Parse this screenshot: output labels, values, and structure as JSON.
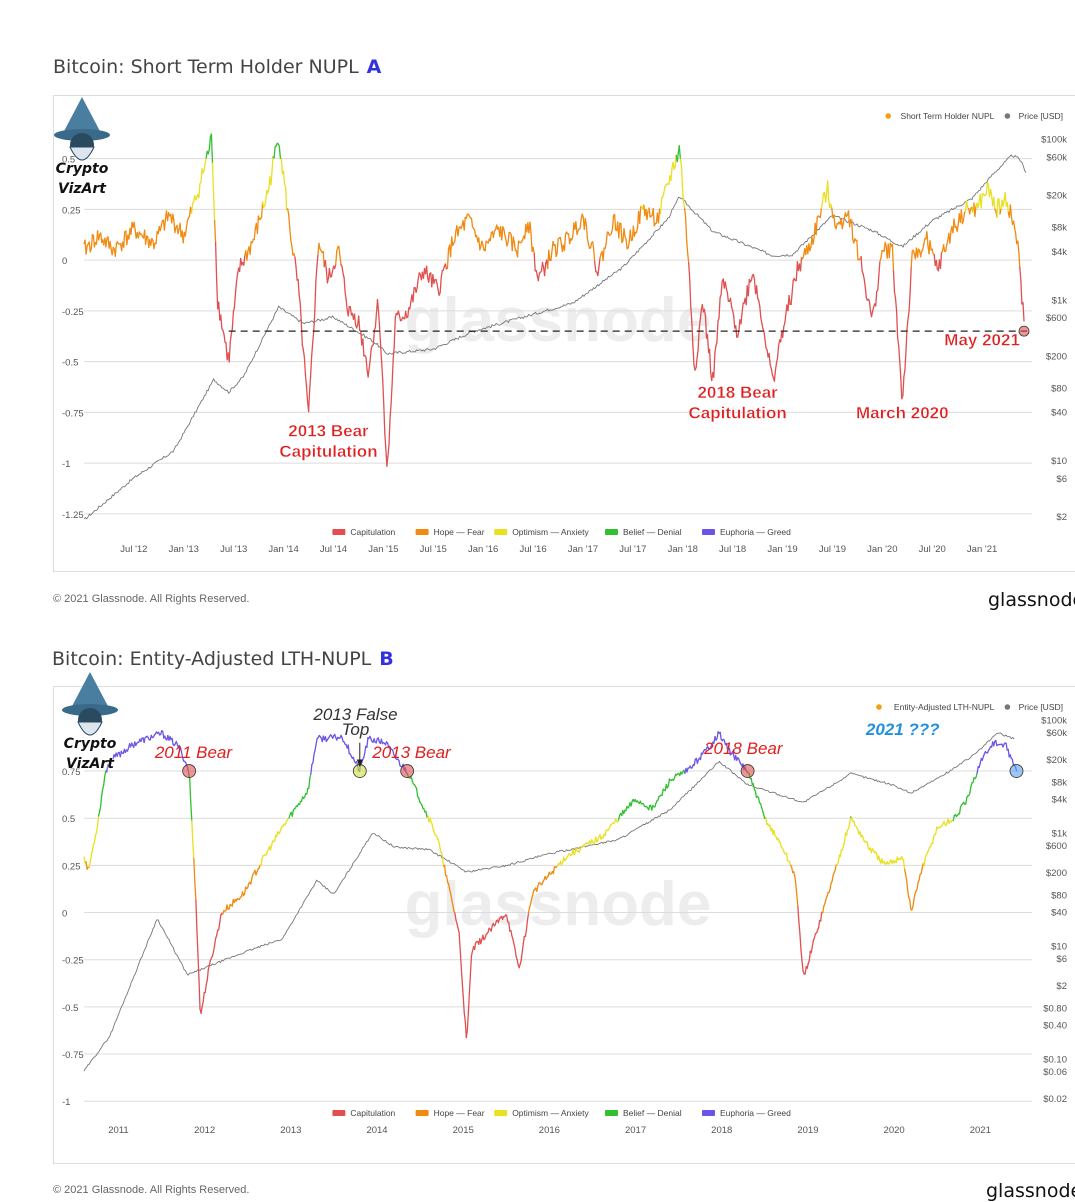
{
  "chart_data": [
    {
      "type": "line",
      "title": "Bitcoin: Short Term Holder NUPL",
      "panel_tag": "A",
      "legend_top": [
        {
          "name": "Short Term Holder NUPL",
          "color": "#f0a010"
        },
        {
          "name": "Price [USD]",
          "color": "#777777"
        }
      ],
      "legend_bottom": [
        {
          "name": "Capitulation",
          "color": "#e05050"
        },
        {
          "name": "Hope — Fear",
          "color": "#f08a10"
        },
        {
          "name": "Optimism — Anxiety",
          "color": "#e8e020"
        },
        {
          "name": "Belief — Denial",
          "color": "#30c030"
        },
        {
          "name": "Euphoria — Greed",
          "color": "#6a55e8"
        }
      ],
      "x_ticks": [
        "Jul '12",
        "Jan '13",
        "Jul '13",
        "Jan '14",
        "Jul '14",
        "Jan '15",
        "Jul '15",
        "Jan '16",
        "Jul '16",
        "Jan '17",
        "Jul '17",
        "Jan '18",
        "Jul '18",
        "Jan '19",
        "Jul '19",
        "Jan '20",
        "Jul '20",
        "Jan '21"
      ],
      "x_range": [
        2012.0,
        2021.5
      ],
      "y_left_ticks": [
        "0.5",
        "0.25",
        "0",
        "-0.25",
        "-0.5",
        "-0.75",
        "-1",
        "-1.25"
      ],
      "y_left_values": [
        0.5,
        0.25,
        0,
        -0.25,
        -0.5,
        -0.75,
        -1,
        -1.25
      ],
      "ylim": [
        -1.3,
        0.7
      ],
      "y_right_ticks": [
        "$100k",
        "$60k",
        "$20k",
        "$8k",
        "$4k",
        "$1k",
        "$600",
        "$200",
        "$80",
        "$40",
        "$10",
        "$6",
        "$2"
      ],
      "y_right_values": [
        100000,
        60000,
        20000,
        8000,
        4000,
        1000,
        600,
        200,
        80,
        40,
        10,
        6,
        2
      ],
      "y_right_range": [
        1.6,
        180000
      ],
      "stroke_keyframes": [
        [
          2012.0,
          0.05
        ],
        [
          2012.15,
          0.12
        ],
        [
          2012.3,
          0.05
        ],
        [
          2012.5,
          0.15
        ],
        [
          2012.7,
          0.08
        ],
        [
          2012.85,
          0.22
        ],
        [
          2013.0,
          0.12
        ],
        [
          2013.15,
          0.35
        ],
        [
          2013.28,
          0.6
        ],
        [
          2013.34,
          -0.2
        ],
        [
          2013.45,
          -0.5
        ],
        [
          2013.55,
          -0.05
        ],
        [
          2013.7,
          0.1
        ],
        [
          2013.85,
          0.35
        ],
        [
          2013.95,
          0.62
        ],
        [
          2014.05,
          0.2
        ],
        [
          2014.15,
          -0.15
        ],
        [
          2014.25,
          -0.78
        ],
        [
          2014.35,
          0.1
        ],
        [
          2014.45,
          -0.1
        ],
        [
          2014.55,
          0.05
        ],
        [
          2014.65,
          -0.25
        ],
        [
          2014.75,
          -0.3
        ],
        [
          2014.85,
          -0.55
        ],
        [
          2014.95,
          -0.2
        ],
        [
          2015.04,
          -1.05
        ],
        [
          2015.12,
          -0.3
        ],
        [
          2015.25,
          -0.25
        ],
        [
          2015.4,
          -0.05
        ],
        [
          2015.55,
          -0.15
        ],
        [
          2015.7,
          0.1
        ],
        [
          2015.85,
          0.2
        ],
        [
          2016.0,
          0.05
        ],
        [
          2016.15,
          0.15
        ],
        [
          2016.35,
          0.05
        ],
        [
          2016.45,
          0.2
        ],
        [
          2016.55,
          -0.1
        ],
        [
          2016.7,
          0.05
        ],
        [
          2016.85,
          0.1
        ],
        [
          2017.0,
          0.22
        ],
        [
          2017.15,
          -0.05
        ],
        [
          2017.3,
          0.2
        ],
        [
          2017.45,
          0.08
        ],
        [
          2017.6,
          0.25
        ],
        [
          2017.75,
          0.2
        ],
        [
          2017.9,
          0.45
        ],
        [
          2017.97,
          0.55
        ],
        [
          2018.05,
          0.05
        ],
        [
          2018.12,
          -0.55
        ],
        [
          2018.2,
          -0.2
        ],
        [
          2018.3,
          -0.6
        ],
        [
          2018.4,
          -0.1
        ],
        [
          2018.55,
          -0.35
        ],
        [
          2018.7,
          -0.05
        ],
        [
          2018.8,
          -0.3
        ],
        [
          2018.9,
          -0.6
        ],
        [
          2019.0,
          -0.35
        ],
        [
          2019.15,
          -0.05
        ],
        [
          2019.3,
          0.1
        ],
        [
          2019.45,
          0.35
        ],
        [
          2019.55,
          0.15
        ],
        [
          2019.65,
          0.25
        ],
        [
          2019.8,
          -0.05
        ],
        [
          2019.9,
          -0.3
        ],
        [
          2020.0,
          0.05
        ],
        [
          2020.1,
          0.05
        ],
        [
          2020.2,
          -0.7
        ],
        [
          2020.3,
          0.0
        ],
        [
          2020.45,
          0.1
        ],
        [
          2020.55,
          -0.05
        ],
        [
          2020.7,
          0.15
        ],
        [
          2020.85,
          0.25
        ],
        [
          2020.95,
          0.25
        ],
        [
          2021.05,
          0.35
        ],
        [
          2021.15,
          0.25
        ],
        [
          2021.25,
          0.3
        ],
        [
          2021.35,
          0.1
        ],
        [
          2021.42,
          -0.3
        ]
      ],
      "price_keyframes": [
        [
          2012.0,
          1.8
        ],
        [
          2012.5,
          6
        ],
        [
          2012.9,
          13
        ],
        [
          2013.3,
          100
        ],
        [
          2013.45,
          70
        ],
        [
          2013.6,
          110
        ],
        [
          2013.95,
          800
        ],
        [
          2014.2,
          500
        ],
        [
          2014.5,
          600
        ],
        [
          2014.9,
          300
        ],
        [
          2015.04,
          210
        ],
        [
          2015.5,
          240
        ],
        [
          2015.9,
          400
        ],
        [
          2016.5,
          650
        ],
        [
          2016.9,
          900
        ],
        [
          2017.4,
          2500
        ],
        [
          2017.85,
          10000
        ],
        [
          2017.97,
          19000
        ],
        [
          2018.3,
          7000
        ],
        [
          2018.9,
          3500
        ],
        [
          2019.1,
          3600
        ],
        [
          2019.5,
          11000
        ],
        [
          2019.9,
          7200
        ],
        [
          2020.2,
          4500
        ],
        [
          2020.5,
          9500
        ],
        [
          2020.9,
          18000
        ],
        [
          2021.1,
          35000
        ],
        [
          2021.3,
          62000
        ],
        [
          2021.38,
          55000
        ],
        [
          2021.45,
          36000
        ]
      ],
      "reference_line": {
        "y": -0.35,
        "style": "dashed"
      },
      "annotations": [
        {
          "text": "2013 Bear",
          "x": 2014.45,
          "y": -0.87
        },
        {
          "text": "Capitulation",
          "x": 2014.45,
          "y": -0.97
        },
        {
          "text": "2018 Bear",
          "x": 2018.55,
          "y": -0.68
        },
        {
          "text": "Capitulation",
          "x": 2018.55,
          "y": -0.78
        },
        {
          "text": "March 2020",
          "x": 2020.2,
          "y": -0.78
        },
        {
          "text": "May 2021",
          "x": 2021.0,
          "y": -0.42
        }
      ],
      "markers": [
        {
          "x": 2021.42,
          "y": -0.35,
          "color": "#e05050"
        }
      ],
      "copyright": "© 2021 Glassnode. All Rights Reserved.",
      "brand": "glassnode",
      "watermark": "glassnode",
      "logo": {
        "line1": "Crypto",
        "line2": "VizArt"
      }
    },
    {
      "type": "line",
      "title": "Bitcoin: Entity-Adjusted LTH-NUPL",
      "panel_tag": "B",
      "legend_top": [
        {
          "name": "Entity-Adjusted LTH-NUPL",
          "color": "#f0a010"
        },
        {
          "name": "Price [USD]",
          "color": "#777777"
        }
      ],
      "legend_bottom": [
        {
          "name": "Capitulation",
          "color": "#e05050"
        },
        {
          "name": "Hope — Fear",
          "color": "#f08a10"
        },
        {
          "name": "Optimism — Anxiety",
          "color": "#e8e020"
        },
        {
          "name": "Belief — Denial",
          "color": "#30c030"
        },
        {
          "name": "Euphoria — Greed",
          "color": "#6a55e8"
        }
      ],
      "x_ticks": [
        "2011",
        "2012",
        "2013",
        "2014",
        "2015",
        "2016",
        "2017",
        "2018",
        "2019",
        "2020",
        "2021"
      ],
      "x_range": [
        2010.6,
        2021.6
      ],
      "y_left_ticks": [
        "0.75",
        "0.5",
        "0.25",
        "0",
        "-0.25",
        "-0.5",
        "-0.75",
        "-1"
      ],
      "y_left_values": [
        0.75,
        0.5,
        0.25,
        0,
        -0.25,
        -0.5,
        -0.75,
        -1
      ],
      "ylim": [
        -1.02,
        1.1
      ],
      "y_right_ticks": [
        "$100k",
        "$60k",
        "$20k",
        "$8k",
        "$4k",
        "$1k",
        "$600",
        "$200",
        "$80",
        "$40",
        "$10",
        "$6",
        "$2",
        "$0.80",
        "$0.40",
        "$0.10",
        "$0.06",
        "$0.02"
      ],
      "y_right_values": [
        100000,
        60000,
        20000,
        8000,
        4000,
        1000,
        600,
        200,
        80,
        40,
        10,
        6,
        2,
        0.8,
        0.4,
        0.1,
        0.06,
        0.02
      ],
      "y_right_range": [
        0.015,
        180000
      ],
      "stroke_keyframes": [
        [
          2010.6,
          0.3
        ],
        [
          2010.65,
          0.22
        ],
        [
          2010.75,
          0.45
        ],
        [
          2010.85,
          0.75
        ],
        [
          2010.95,
          0.82
        ],
        [
          2011.2,
          0.9
        ],
        [
          2011.5,
          0.95
        ],
        [
          2011.7,
          0.88
        ],
        [
          2011.82,
          0.75
        ],
        [
          2011.9,
          0.05
        ],
        [
          2011.95,
          -0.55
        ],
        [
          2012.05,
          -0.3
        ],
        [
          2012.2,
          0.0
        ],
        [
          2012.45,
          0.1
        ],
        [
          2012.7,
          0.3
        ],
        [
          2012.9,
          0.45
        ],
        [
          2013.05,
          0.55
        ],
        [
          2013.2,
          0.65
        ],
        [
          2013.3,
          0.92
        ],
        [
          2013.6,
          0.93
        ],
        [
          2013.8,
          0.75
        ],
        [
          2013.9,
          0.92
        ],
        [
          2014.1,
          0.9
        ],
        [
          2014.25,
          0.8
        ],
        [
          2014.35,
          0.75
        ],
        [
          2014.5,
          0.6
        ],
        [
          2014.7,
          0.4
        ],
        [
          2014.8,
          0.2
        ],
        [
          2014.95,
          -0.1
        ],
        [
          2015.04,
          -0.7
        ],
        [
          2015.1,
          -0.2
        ],
        [
          2015.3,
          -0.1
        ],
        [
          2015.5,
          0.0
        ],
        [
          2015.65,
          -0.3
        ],
        [
          2015.8,
          0.1
        ],
        [
          2016.0,
          0.2
        ],
        [
          2016.2,
          0.3
        ],
        [
          2016.4,
          0.35
        ],
        [
          2016.6,
          0.4
        ],
        [
          2016.8,
          0.5
        ],
        [
          2017.0,
          0.6
        ],
        [
          2017.2,
          0.55
        ],
        [
          2017.4,
          0.7
        ],
        [
          2017.6,
          0.75
        ],
        [
          2017.8,
          0.85
        ],
        [
          2017.97,
          0.95
        ],
        [
          2018.1,
          0.85
        ],
        [
          2018.3,
          0.75
        ],
        [
          2018.5,
          0.5
        ],
        [
          2018.7,
          0.35
        ],
        [
          2018.85,
          0.2
        ],
        [
          2018.95,
          -0.35
        ],
        [
          2019.1,
          -0.1
        ],
        [
          2019.3,
          0.2
        ],
        [
          2019.5,
          0.5
        ],
        [
          2019.7,
          0.35
        ],
        [
          2019.9,
          0.25
        ],
        [
          2020.1,
          0.3
        ],
        [
          2020.2,
          0.0
        ],
        [
          2020.3,
          0.2
        ],
        [
          2020.5,
          0.45
        ],
        [
          2020.7,
          0.5
        ],
        [
          2020.85,
          0.6
        ],
        [
          2021.0,
          0.8
        ],
        [
          2021.15,
          0.9
        ],
        [
          2021.3,
          0.88
        ],
        [
          2021.42,
          0.75
        ]
      ],
      "price_keyframes": [
        [
          2010.6,
          0.06
        ],
        [
          2010.9,
          0.25
        ],
        [
          2011.45,
          30
        ],
        [
          2011.8,
          3
        ],
        [
          2012.0,
          4
        ],
        [
          2012.5,
          8
        ],
        [
          2012.9,
          13
        ],
        [
          2013.3,
          140
        ],
        [
          2013.5,
          80
        ],
        [
          2013.95,
          1000
        ],
        [
          2014.2,
          550
        ],
        [
          2014.6,
          500
        ],
        [
          2015.04,
          200
        ],
        [
          2015.5,
          260
        ],
        [
          2016.0,
          420
        ],
        [
          2016.8,
          750
        ],
        [
          2017.4,
          2500
        ],
        [
          2017.97,
          18000
        ],
        [
          2018.3,
          7000
        ],
        [
          2018.95,
          3400
        ],
        [
          2019.5,
          11000
        ],
        [
          2019.95,
          7200
        ],
        [
          2020.2,
          5000
        ],
        [
          2020.6,
          11000
        ],
        [
          2020.95,
          25000
        ],
        [
          2021.2,
          58000
        ],
        [
          2021.4,
          45000
        ]
      ],
      "annotations": [
        {
          "text": "2011 Bear",
          "x": 2011.87,
          "y": 0.82,
          "color": "#e02020"
        },
        {
          "text": "2013 False",
          "x": 2013.75,
          "y": 1.02,
          "color": "#333333"
        },
        {
          "text": "Top",
          "x": 2013.75,
          "y": 0.94,
          "color": "#333333"
        },
        {
          "text": "2013 Bear",
          "x": 2014.4,
          "y": 0.82,
          "color": "#e02020"
        },
        {
          "text": "2018 Bear",
          "x": 2018.25,
          "y": 0.84,
          "color": "#e02020"
        },
        {
          "text": "2021 ???",
          "x": 2020.1,
          "y": 0.94,
          "color": "#2090e0"
        }
      ],
      "markers": [
        {
          "x": 2011.82,
          "y": 0.75,
          "color": "#e05050"
        },
        {
          "x": 2013.8,
          "y": 0.75,
          "color": "#d0e040"
        },
        {
          "x": 2014.35,
          "y": 0.75,
          "color": "#e05050"
        },
        {
          "x": 2018.3,
          "y": 0.75,
          "color": "#e05050"
        },
        {
          "x": 2021.42,
          "y": 0.75,
          "color": "#5aa0f0"
        }
      ],
      "copyright": "© 2021 Glassnode. All Rights Reserved.",
      "brand": "glassnode",
      "watermark": "glassnode",
      "logo": {
        "line1": "Crypto",
        "line2": "VizArt"
      }
    }
  ]
}
